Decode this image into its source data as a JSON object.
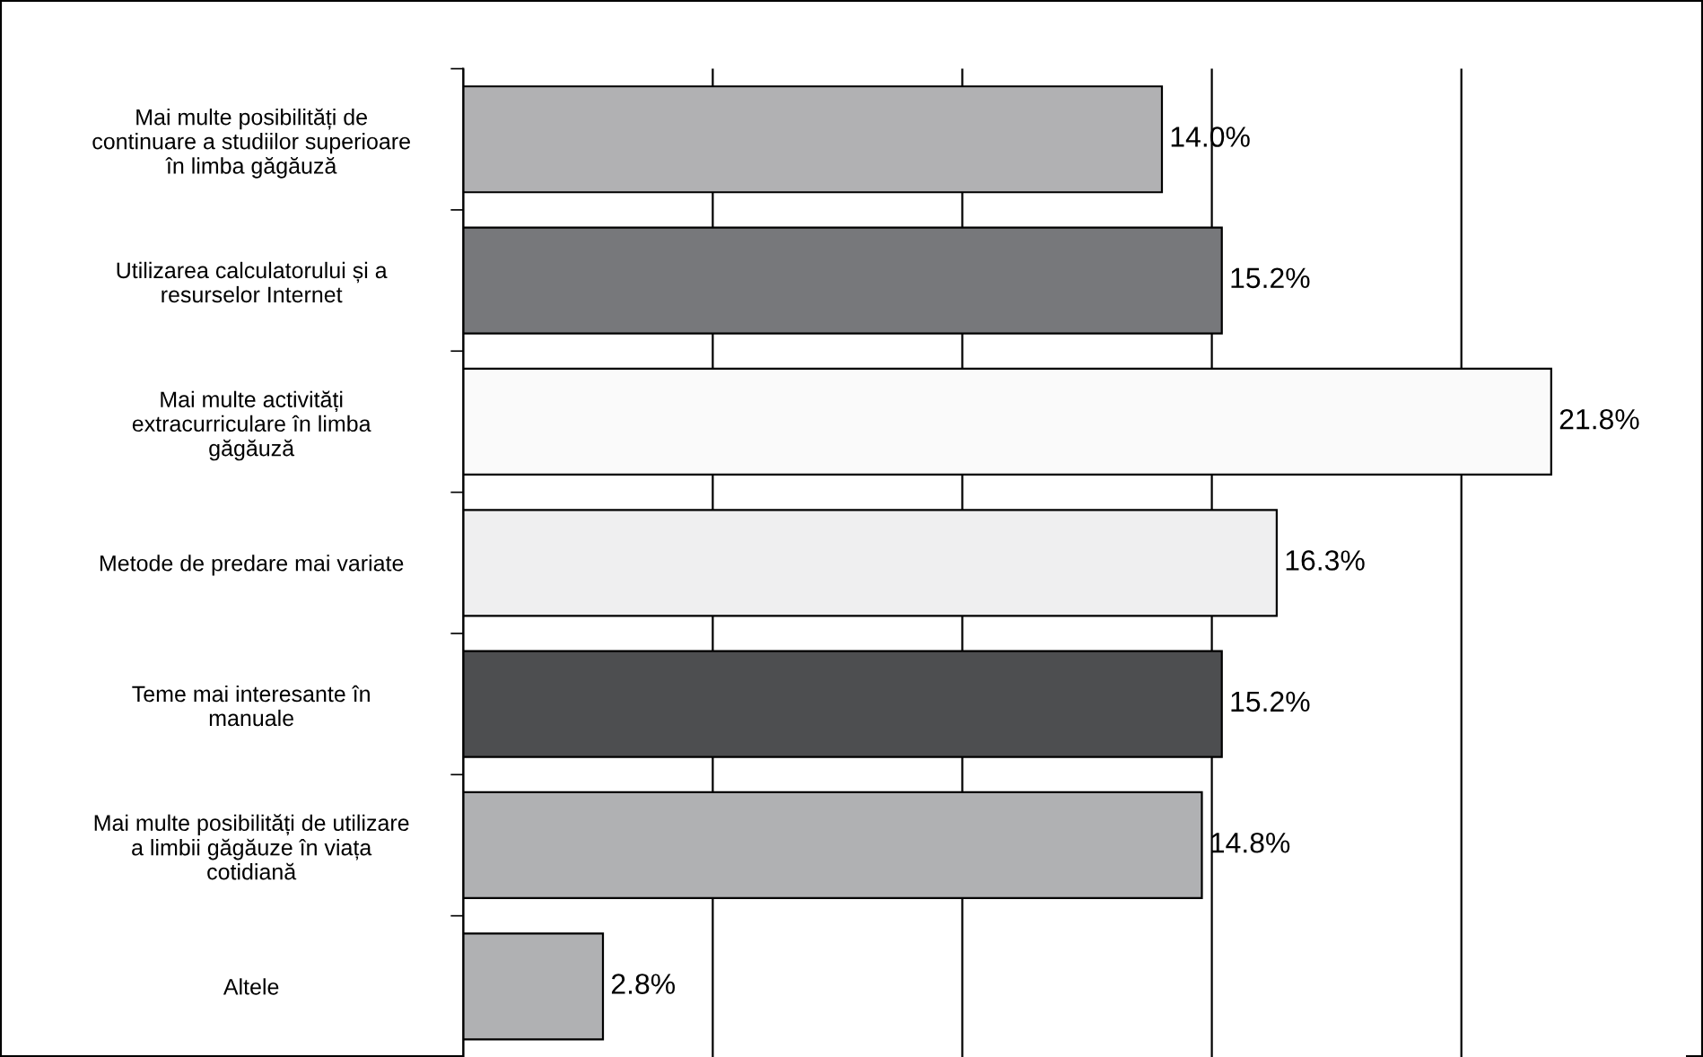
{
  "chart_data": {
    "type": "bar",
    "orientation": "horizontal",
    "categories": [
      "Mai multe posibilități de\ncontinuare a studiilor superioare\nîn limba găgăuză",
      "Utilizarea calculatorului și a\nresurselor Internet",
      "Mai multe activități\nextracurriculare în limba\ngăgăuză",
      "Metode de predare mai variate",
      "Teme mai interesante în\nmanuale",
      "Mai multe posibilități de utilizare\na limbii găgăuze în viața\ncotidiană",
      "Altele"
    ],
    "values": [
      14.0,
      15.2,
      21.8,
      16.3,
      15.2,
      14.8,
      2.8
    ],
    "colors": [
      "#b1b1b3",
      "#77787b",
      "#fafafa",
      "#efeff0",
      "#4d4e50",
      "#b0b1b3",
      "#b0b1b3"
    ],
    "value_labels": [
      "14.0%",
      "15.2%",
      "21.8%",
      "16.3%",
      "15.2%",
      "14.8%",
      "2.8%"
    ],
    "xlim": [
      0,
      24.5
    ],
    "xticks": [
      {
        "value": 0,
        "label": null
      },
      {
        "value": 5,
        "label": null
      },
      {
        "value": 10,
        "label": null
      },
      {
        "value": 15,
        "label": null
      },
      {
        "value": 20,
        "label": null
      }
    ],
    "grid": "x",
    "tick_labels": "y",
    "legend": false
  }
}
